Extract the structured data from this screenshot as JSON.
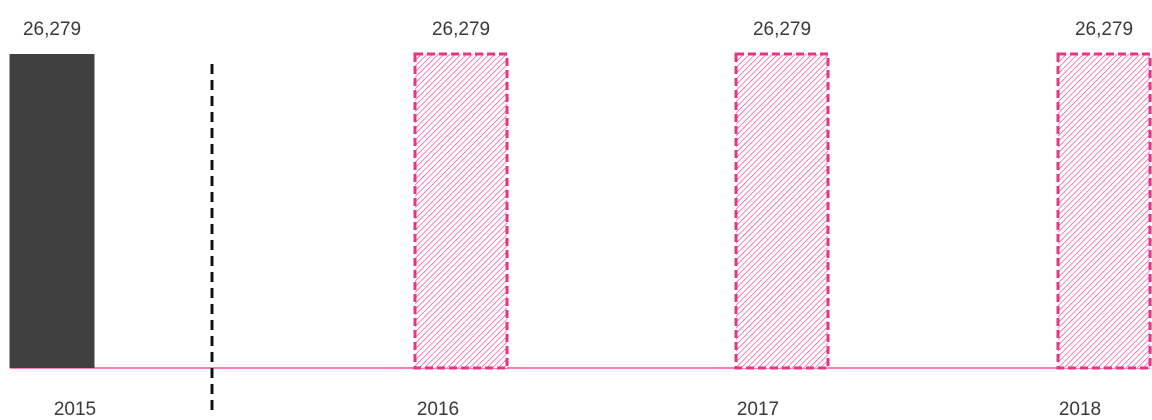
{
  "chart_data": {
    "type": "bar",
    "categories": [
      "2015",
      "2016",
      "2017",
      "2018"
    ],
    "values": [
      26279,
      26279,
      26279,
      26279
    ],
    "value_labels": [
      "26,279",
      "26,279",
      "26,279",
      "26,279"
    ],
    "colors": [
      "#404040",
      "#e8338a",
      "#e8338a",
      "#e8338a"
    ],
    "hatched": [
      false,
      true,
      true,
      true
    ],
    "ylim": [
      0,
      26279
    ]
  }
}
